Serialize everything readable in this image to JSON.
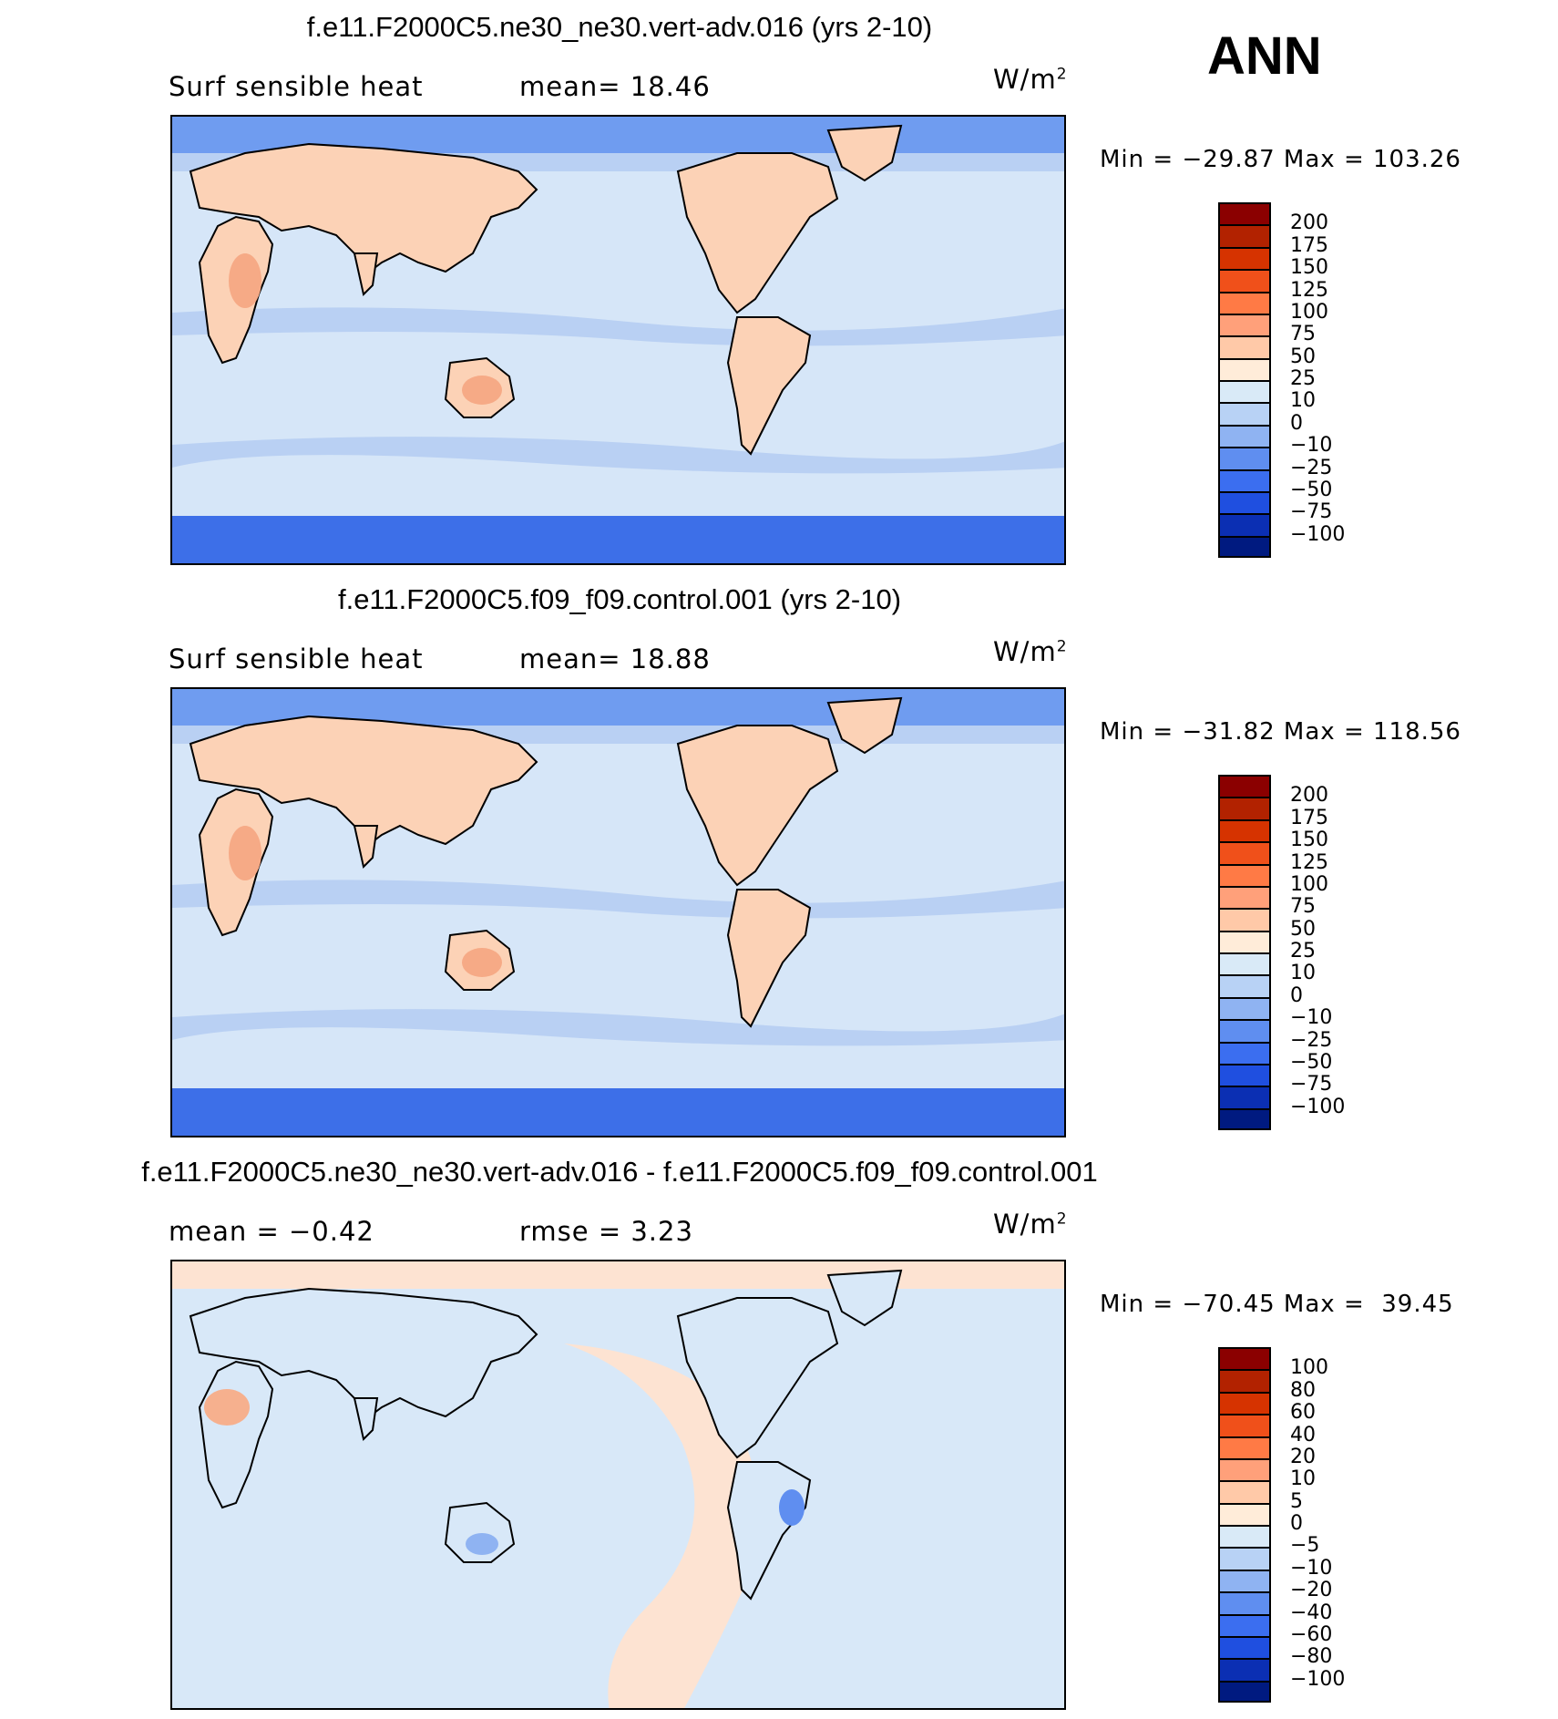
{
  "season": "ANN",
  "panels": [
    {
      "title": "f.e11.F2000C5.ne30_ne30.vert-adv.016 (yrs 2-10)",
      "left_label": "Surf sensible heat",
      "mid_label": "mean=   18.46",
      "units": "W/m",
      "units_sup": "2",
      "minmax": "Min = −29.87 Max = 103.26",
      "levels": [
        "200",
        "175",
        "150",
        "125",
        "100",
        "75",
        "50",
        "25",
        "10",
        "0",
        "−10",
        "−25",
        "−50",
        "−75",
        "−100"
      ],
      "colors": [
        "#8b0000",
        "#b22200",
        "#d63300",
        "#f0501a",
        "#ff7a45",
        "#ffa07a",
        "#ffc9a8",
        "#ffecd9",
        "#d9eaf7",
        "#b8d2f5",
        "#8fb3f2",
        "#5f8ef0",
        "#3b6ef0",
        "#1f4fe0",
        "#0b2fb3",
        "#001a80"
      ]
    },
    {
      "title": "f.e11.F2000C5.f09_f09.control.001 (yrs 2-10)",
      "left_label": "Surf sensible heat",
      "mid_label": "mean=   18.88",
      "units": "W/m",
      "units_sup": "2",
      "minmax": "Min = −31.82 Max = 118.56",
      "levels": [
        "200",
        "175",
        "150",
        "125",
        "100",
        "75",
        "50",
        "25",
        "10",
        "0",
        "−10",
        "−25",
        "−50",
        "−75",
        "−100"
      ],
      "colors": [
        "#8b0000",
        "#b22200",
        "#d63300",
        "#f0501a",
        "#ff7a45",
        "#ffa07a",
        "#ffc9a8",
        "#ffecd9",
        "#d9eaf7",
        "#b8d2f5",
        "#8fb3f2",
        "#5f8ef0",
        "#3b6ef0",
        "#1f4fe0",
        "#0b2fb3",
        "#001a80"
      ]
    },
    {
      "title": "f.e11.F2000C5.ne30_ne30.vert-adv.016 - f.e11.F2000C5.f09_f09.control.001",
      "left_label": "mean =   −0.42",
      "mid_label": "rmse =    3.23",
      "units": "W/m",
      "units_sup": "2",
      "minmax": "Min = −70.45 Max =  39.45",
      "levels": [
        "100",
        "80",
        "60",
        "40",
        "20",
        "10",
        "5",
        "0",
        "−5",
        "−10",
        "−20",
        "−40",
        "−60",
        "−80",
        "−100"
      ],
      "colors": [
        "#8b0000",
        "#b22200",
        "#d63300",
        "#f0501a",
        "#ff7a45",
        "#ffa07a",
        "#ffc9a8",
        "#ffecd9",
        "#d9eaf7",
        "#b8d2f5",
        "#8fb3f2",
        "#5f8ef0",
        "#3b6ef0",
        "#1f4fe0",
        "#0b2fb3",
        "#001a80"
      ]
    }
  ],
  "colors": {
    "ocean_main": "#d6e6f8",
    "ocean_band": "#b9d0f3",
    "polar": "#6f9cf0",
    "antarctic": "#3d6fe8",
    "land_warm": "#fcd2b6",
    "land_hot": "#f6aa86",
    "coast": "#000000",
    "diff_ocean": "#d8e8f8",
    "diff_warm": "#fde3d2"
  }
}
